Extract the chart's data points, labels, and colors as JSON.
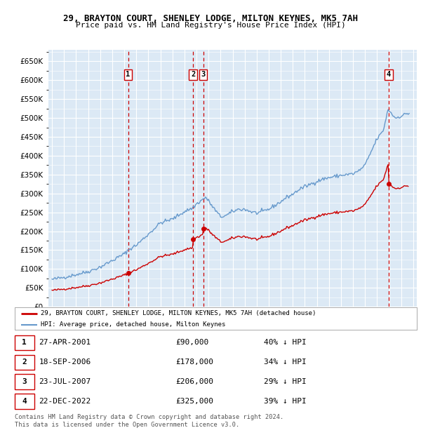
{
  "title": "29, BRAYTON COURT, SHENLEY LODGE, MILTON KEYNES, MK5 7AH",
  "subtitle": "Price paid vs. HM Land Registry's House Price Index (HPI)",
  "legend_label_red": "29, BRAYTON COURT, SHENLEY LODGE, MILTON KEYNES, MK5 7AH (detached house)",
  "legend_label_blue": "HPI: Average price, detached house, Milton Keynes",
  "footer1": "Contains HM Land Registry data © Crown copyright and database right 2024.",
  "footer2": "This data is licensed under the Open Government Licence v3.0.",
  "sales": [
    {
      "num": 1,
      "date_str": "27-APR-2001",
      "price": 90000,
      "pct": "40% ↓ HPI",
      "year": 2001.32
    },
    {
      "num": 2,
      "date_str": "18-SEP-2006",
      "price": 178000,
      "pct": "34% ↓ HPI",
      "year": 2006.71
    },
    {
      "num": 3,
      "date_str": "23-JUL-2007",
      "price": 206000,
      "pct": "29% ↓ HPI",
      "year": 2007.56
    },
    {
      "num": 4,
      "date_str": "22-DEC-2022",
      "price": 325000,
      "pct": "39% ↓ HPI",
      "year": 2022.97
    }
  ],
  "ylim": [
    0,
    680000
  ],
  "xlim_start": 1994.7,
  "xlim_end": 2025.3,
  "bg_color": "#dce9f5",
  "red_color": "#cc0000",
  "blue_color": "#6699cc",
  "title_fontsize": 9,
  "subtitle_fontsize": 8
}
